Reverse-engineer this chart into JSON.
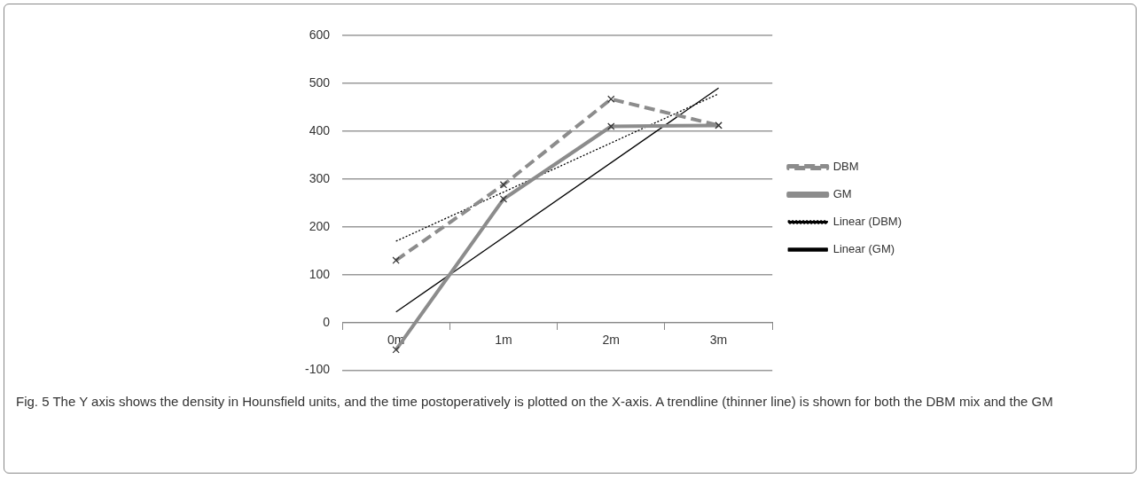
{
  "chart_data": {
    "type": "line",
    "categories": [
      "0m",
      "1m",
      "2m",
      "3m"
    ],
    "series": [
      {
        "name": "DBM",
        "color": "#8c8c8c",
        "values": [
          130,
          288,
          467,
          412
        ],
        "line_style": "dashed",
        "marker": "cross"
      },
      {
        "name": "GM",
        "color": "#8c8c8c",
        "values": [
          -57,
          258,
          410,
          412
        ],
        "line_style": "solid",
        "marker": "cross"
      },
      {
        "name": "Linear (DBM)",
        "color": "#000000",
        "x": [
          "0m",
          "3m"
        ],
        "values": [
          170,
          478
        ],
        "line_style": "dotted",
        "marker": "none"
      },
      {
        "name": "Linear (GM)",
        "color": "#000000",
        "x": [
          "0m",
          "3m"
        ],
        "values": [
          22,
          490
        ],
        "line_style": "solid",
        "marker": "none"
      }
    ],
    "ylim": [
      -100,
      600
    ],
    "yticks": [
      -100,
      0,
      100,
      200,
      300,
      400,
      500,
      600
    ],
    "grid": "y",
    "legend": "right",
    "annotations": [
      "Fig. 5 The Y axis shows the density in Hounsfield units, and the time postoperatively is plotted on the X-axis. A trendline (thinner line) is shown for both the DBM mix and the GM"
    ]
  }
}
